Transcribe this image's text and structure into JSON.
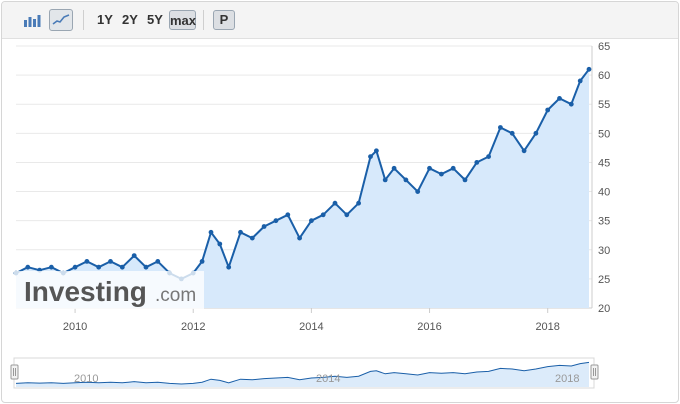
{
  "toolbar": {
    "chart_type_buttons": [
      "bar-chart-icon",
      "line-chart-icon"
    ],
    "ranges": [
      "1Y",
      "2Y",
      "5Y",
      "max"
    ],
    "active_range": "max",
    "p_label": "P"
  },
  "watermark": {
    "brand": "Investing",
    "suffix": ".com"
  },
  "navigator": {
    "labels": [
      "2010",
      "2014",
      "2018"
    ]
  },
  "colors": {
    "line": "#1a5fa8",
    "fill": "#d7e9fb",
    "axis": "#cccccc",
    "grid": "#e9e9e9"
  },
  "chart_data": {
    "type": "area",
    "title": "",
    "xlabel": "",
    "ylabel": "",
    "xlim": [
      2009.0,
      2018.75
    ],
    "ylim": [
      20,
      65
    ],
    "yticks": [
      20,
      25,
      30,
      35,
      40,
      45,
      50,
      55,
      60,
      65
    ],
    "xticks": [
      "2010",
      "2012",
      "2014",
      "2016",
      "2018"
    ],
    "x": [
      2009.0,
      2009.2,
      2009.4,
      2009.6,
      2009.8,
      2010.0,
      2010.2,
      2010.4,
      2010.6,
      2010.8,
      2011.0,
      2011.2,
      2011.4,
      2011.6,
      2011.8,
      2012.0,
      2012.15,
      2012.3,
      2012.45,
      2012.6,
      2012.8,
      2013.0,
      2013.2,
      2013.4,
      2013.6,
      2013.8,
      2014.0,
      2014.2,
      2014.4,
      2014.6,
      2014.8,
      2015.0,
      2015.1,
      2015.25,
      2015.4,
      2015.6,
      2015.8,
      2016.0,
      2016.2,
      2016.4,
      2016.6,
      2016.8,
      2017.0,
      2017.2,
      2017.4,
      2017.6,
      2017.8,
      2018.0,
      2018.2,
      2018.4,
      2018.55,
      2018.7
    ],
    "y": [
      26,
      27,
      26.5,
      27,
      26,
      27,
      28,
      27,
      28,
      27,
      29,
      27,
      28,
      26,
      25,
      26,
      28,
      33,
      31,
      27,
      33,
      32,
      34,
      35,
      36,
      32,
      35,
      36,
      38,
      36,
      38,
      46,
      47,
      42,
      44,
      42,
      40,
      44,
      43,
      44,
      42,
      45,
      46,
      51,
      50,
      47,
      50,
      54,
      56,
      55,
      59,
      61
    ]
  }
}
